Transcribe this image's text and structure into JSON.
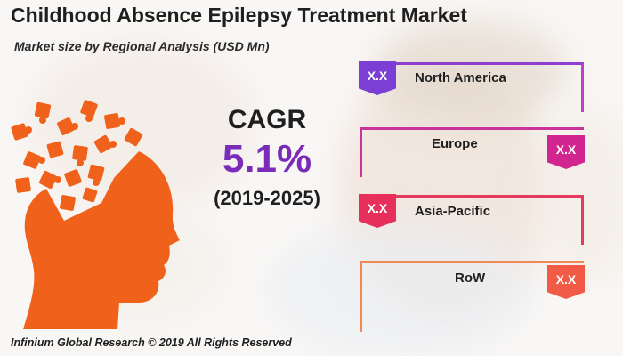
{
  "title": "Childhood Absence Epilepsy Treatment Market",
  "subtitle": "Market size by Regional Analysis (USD Mn)",
  "cagr": {
    "label": "CAGR",
    "value": "5.1%",
    "period": "(2019-2025)"
  },
  "regions": [
    {
      "name": "North America",
      "value": "X.X",
      "color": "#7c3fd6"
    },
    {
      "name": "Europe",
      "value": "X.X",
      "color": "#d1258f"
    },
    {
      "name": "Asia-Pacific",
      "value": "X.X",
      "color": "#e62f5a"
    },
    {
      "name": "RoW",
      "value": "X.X",
      "color": "#f15b45"
    }
  ],
  "footer": "Infinium Global Research © 2019 All Rights Reserved",
  "icons": {
    "head": "head-puzzle-icon"
  },
  "colors": {
    "accent": "#7a2cb8",
    "orange": "#f0621c"
  }
}
